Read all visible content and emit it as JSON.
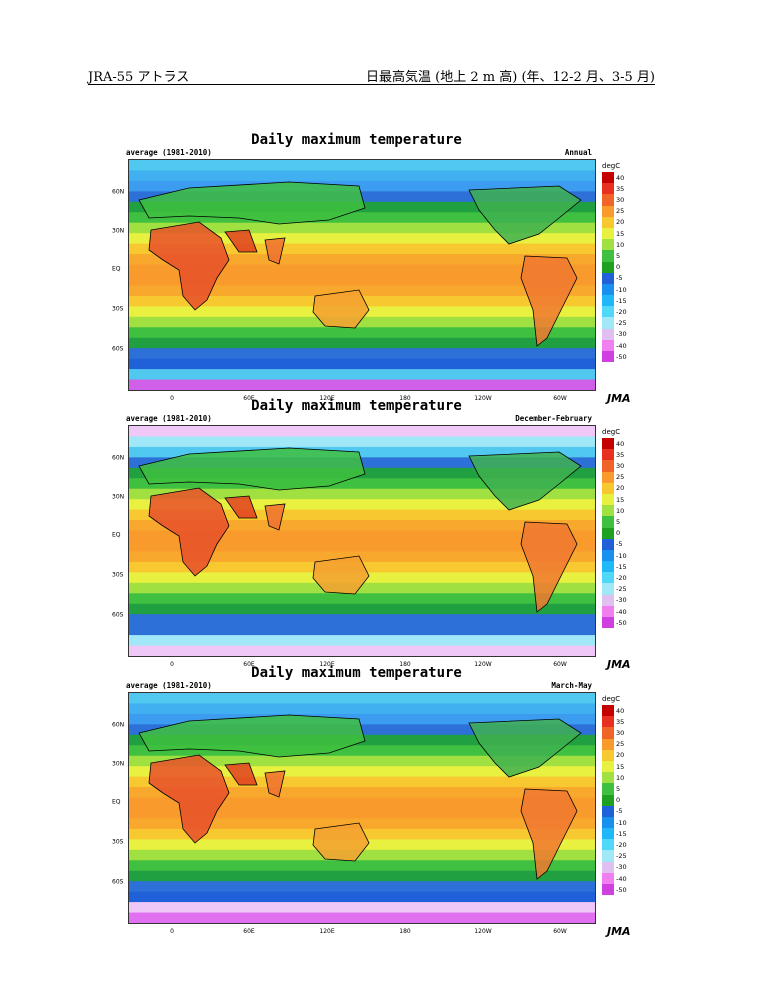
{
  "header": {
    "left": "JRA-55 アトラス",
    "right": "日最高気温 (地上 2 m 高) (年、12-2 月、3-5 月)"
  },
  "panels": [
    {
      "title": "Daily maximum temperature",
      "subtitle": "average (1981-2010)",
      "season": "Annual"
    },
    {
      "title": "Daily maximum temperature",
      "subtitle": "average (1981-2010)",
      "season": "December-February"
    },
    {
      "title": "Daily maximum temperature",
      "subtitle": "average (1981-2010)",
      "season": "March-May"
    }
  ],
  "axes": {
    "lat_labels": [
      "60N",
      "30N",
      "EQ",
      "30S",
      "60S"
    ],
    "lon_labels": [
      "0",
      "60E",
      "120E",
      "180",
      "120W",
      "60W"
    ]
  },
  "colorbar": {
    "unit": "degC",
    "labels": [
      "40",
      "35",
      "30",
      "25",
      "20",
      "15",
      "10",
      "5",
      "0",
      "-5",
      "-10",
      "-15",
      "-20",
      "-25",
      "-30",
      "-40",
      "-50"
    ],
    "colors": [
      "#c40000",
      "#e83020",
      "#f06428",
      "#f89a2c",
      "#f8c830",
      "#e8f040",
      "#a0e040",
      "#40c040",
      "#20a020",
      "#2060d8",
      "#1890f0",
      "#20b8f8",
      "#50d8f8",
      "#a0e8f8",
      "#e0c0f0",
      "#f080f0",
      "#d040e0"
    ],
    "jma_label": "JMA"
  }
}
